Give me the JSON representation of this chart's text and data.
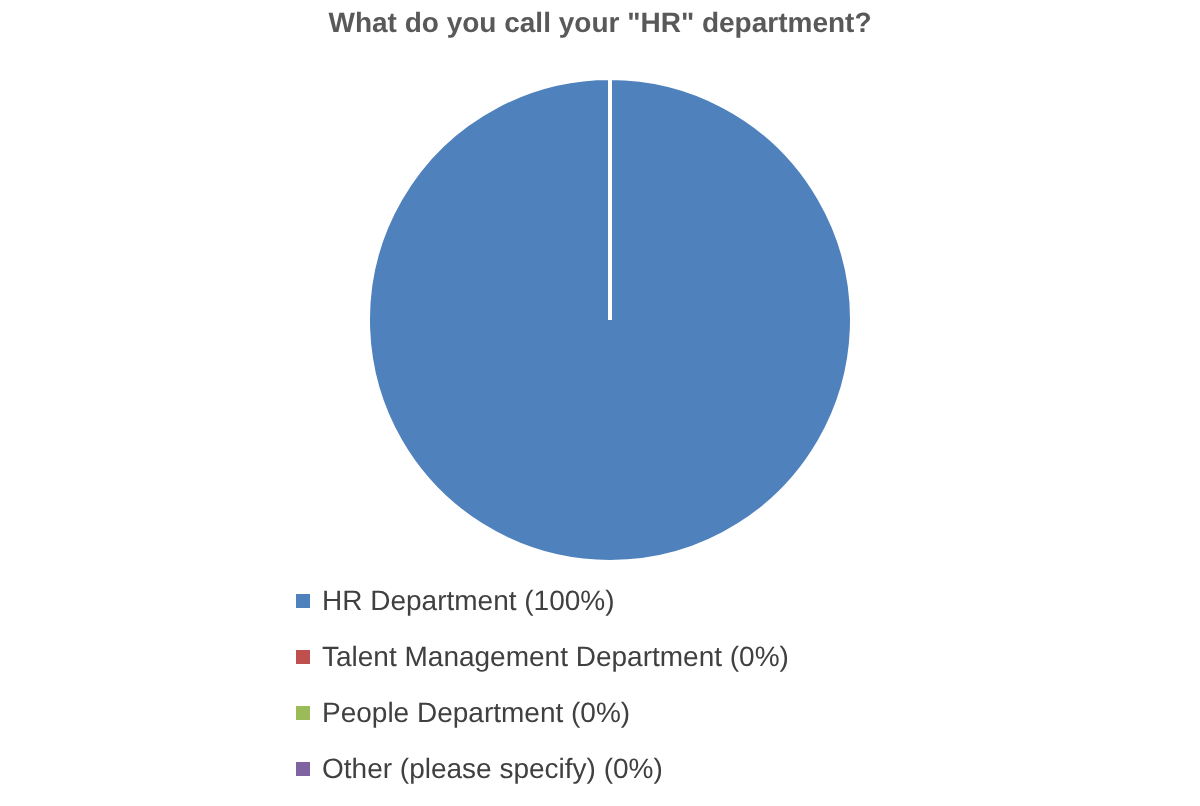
{
  "chart_data": {
    "type": "pie",
    "title": "What do you call your \"HR\" department?",
    "categories": [
      "HR Department (100%)",
      "Talent Management Department (0%)",
      "People Department (0%)",
      "Other (please specify) (0%)"
    ],
    "values": [
      100,
      0,
      0,
      0
    ],
    "colors": [
      "#4f81bd",
      "#c0504d",
      "#9bbb59",
      "#8064a2"
    ],
    "legend": "bottom"
  }
}
